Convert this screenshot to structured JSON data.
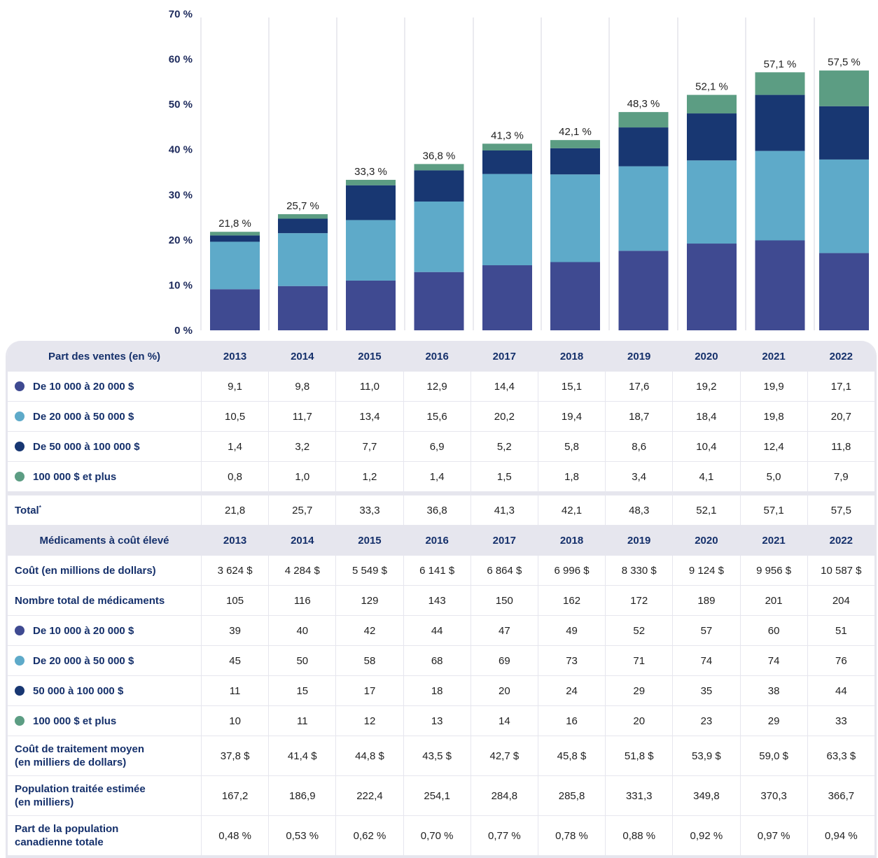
{
  "colors": {
    "s1": "#3f4a91",
    "s2": "#5eaac9",
    "s3": "#183772",
    "s4": "#5c9d83",
    "header_bg": "#e6e6ee",
    "text_navy": "#15306b"
  },
  "chart_data": {
    "type": "bar",
    "stacked": true,
    "title": "",
    "xlabel": "",
    "ylabel": "",
    "ylim": [
      0,
      70
    ],
    "yticks": [
      "0 %",
      "10 %",
      "20 %",
      "30 %",
      "40 %",
      "50 %",
      "60 %",
      "70 %"
    ],
    "ytick_values": [
      0,
      10,
      20,
      30,
      40,
      50,
      60,
      70
    ],
    "grid": "vertical separators",
    "categories": [
      "2013",
      "2014",
      "2015",
      "2016",
      "2017",
      "2018",
      "2019",
      "2020",
      "2021",
      "2022"
    ],
    "series": [
      {
        "name": "De 10 000 à 20 000 $",
        "color": "#3f4a91",
        "values": [
          9.1,
          9.8,
          11.0,
          12.9,
          14.4,
          15.1,
          17.6,
          19.2,
          19.9,
          17.1
        ]
      },
      {
        "name": "De 20 000 à 50 000 $",
        "color": "#5eaac9",
        "values": [
          10.5,
          11.7,
          13.4,
          15.6,
          20.2,
          19.4,
          18.7,
          18.4,
          19.8,
          20.7
        ]
      },
      {
        "name": "De 50 000 à 100 000 $",
        "color": "#183772",
        "values": [
          1.4,
          3.2,
          7.7,
          6.9,
          5.2,
          5.8,
          8.6,
          10.4,
          12.4,
          11.8
        ]
      },
      {
        "name": "100 000 $ et plus",
        "color": "#5c9d83",
        "values": [
          0.8,
          1.0,
          1.2,
          1.4,
          1.5,
          1.8,
          3.4,
          4.1,
          5.0,
          7.9
        ]
      }
    ],
    "totals": [
      21.8,
      25.7,
      33.3,
      36.8,
      41.3,
      42.1,
      48.3,
      52.1,
      57.1,
      57.5
    ],
    "total_labels": [
      "21,8 %",
      "25,7 %",
      "33,3 %",
      "36,8 %",
      "41,3 %",
      "42,1 %",
      "48,3 %",
      "52,1 %",
      "57,1 %",
      "57,5 %"
    ]
  },
  "table1": {
    "header": "Part des ventes (en %)",
    "years": [
      "2013",
      "2014",
      "2015",
      "2016",
      "2017",
      "2018",
      "2019",
      "2020",
      "2021",
      "2022"
    ],
    "rows": [
      {
        "label": "De 10 000 à 20 000 $",
        "dot": "#3f4a91",
        "values": [
          "9,1",
          "9,8",
          "11,0",
          "12,9",
          "14,4",
          "15,1",
          "17,6",
          "19,2",
          "19,9",
          "17,1"
        ]
      },
      {
        "label": "De 20 000 à 50 000 $",
        "dot": "#5eaac9",
        "values": [
          "10,5",
          "11,7",
          "13,4",
          "15,6",
          "20,2",
          "19,4",
          "18,7",
          "18,4",
          "19,8",
          "20,7"
        ]
      },
      {
        "label": "De 50 000 à 100 000 $",
        "dot": "#183772",
        "values": [
          "1,4",
          "3,2",
          "7,7",
          "6,9",
          "5,2",
          "5,8",
          "8,6",
          "10,4",
          "12,4",
          "11,8"
        ]
      },
      {
        "label": "100 000 $ et plus",
        "dot": "#5c9d83",
        "values": [
          "0,8",
          "1,0",
          "1,2",
          "1,4",
          "1,5",
          "1,8",
          "3,4",
          "4,1",
          "5,0",
          "7,9"
        ]
      }
    ],
    "total": {
      "label": "Total",
      "footnote": "*",
      "values": [
        "21,8",
        "25,7",
        "33,3",
        "36,8",
        "41,3",
        "42,1",
        "48,3",
        "52,1",
        "57,1",
        "57,5"
      ]
    }
  },
  "table2": {
    "header": "Médicaments à coût élevé",
    "years": [
      "2013",
      "2014",
      "2015",
      "2016",
      "2017",
      "2018",
      "2019",
      "2020",
      "2021",
      "2022"
    ],
    "rows": [
      {
        "label": "Coût (en millions de dollars)",
        "values": [
          "3 624 $",
          "4 284 $",
          "5 549 $",
          "6 141 $",
          "6 864 $",
          "6 996 $",
          "8 330 $",
          "9 124 $",
          "9 956 $",
          "10 587 $"
        ]
      },
      {
        "label": "Nombre total de médicaments",
        "values": [
          "105",
          "116",
          "129",
          "143",
          "150",
          "162",
          "172",
          "189",
          "201",
          "204"
        ]
      },
      {
        "label": "De 10 000 à 20 000 $",
        "dot": "#3f4a91",
        "values": [
          "39",
          "40",
          "42",
          "44",
          "47",
          "49",
          "52",
          "57",
          "60",
          "51"
        ]
      },
      {
        "label": "De 20 000 à 50 000 $",
        "dot": "#5eaac9",
        "values": [
          "45",
          "50",
          "58",
          "68",
          "69",
          "73",
          "71",
          "74",
          "74",
          "76"
        ]
      },
      {
        "label": "50 000 à 100 000 $",
        "dot": "#183772",
        "values": [
          "11",
          "15",
          "17",
          "18",
          "20",
          "24",
          "29",
          "35",
          "38",
          "44"
        ]
      },
      {
        "label": "100 000 $ et plus",
        "dot": "#5c9d83",
        "values": [
          "10",
          "11",
          "12",
          "13",
          "14",
          "16",
          "20",
          "23",
          "29",
          "33"
        ]
      },
      {
        "label": "Coût de traitement moyen",
        "label2": "(en milliers de dollars)",
        "values": [
          "37,8 $",
          "41,4 $",
          "44,8 $",
          "43,5 $",
          "42,7 $",
          "45,8 $",
          "51,8 $",
          "53,9 $",
          "59,0 $",
          "63,3 $"
        ]
      },
      {
        "label": "Population traitée estimée",
        "label2": "(en milliers)",
        "values": [
          "167,2",
          "186,9",
          "222,4",
          "254,1",
          "284,8",
          "285,8",
          "331,3",
          "349,8",
          "370,3",
          "366,7"
        ]
      },
      {
        "label": "Part de la population",
        "label2": "canadienne totale",
        "values": [
          "0,48 %",
          "0,53 %",
          "0,62 %",
          "0,70 %",
          "0,77 %",
          "0,78 %",
          "0,88 %",
          "0,92 %",
          "0,97 %",
          "0,94 %"
        ]
      }
    ]
  }
}
